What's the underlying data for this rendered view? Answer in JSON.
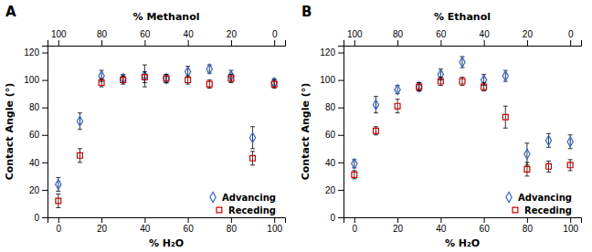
{
  "chart_data": [
    {
      "type": "scatter",
      "title": "A",
      "x_label": "% H₂O",
      "y_label": "Contact Angle (°)",
      "x2_label": "% Methanol",
      "x": [
        0,
        10,
        20,
        30,
        40,
        50,
        60,
        70,
        80,
        90,
        100
      ],
      "series": [
        {
          "name": "Advancing",
          "color": "#3366cc",
          "marker": "diamond",
          "values": [
            24,
            70,
            103,
            101,
            103,
            101,
            106,
            108,
            103,
            58,
            98
          ],
          "errors": [
            5,
            6,
            4,
            3,
            8,
            3,
            4,
            3,
            4,
            8,
            3
          ]
        },
        {
          "name": "Receding",
          "color": "#cc0000",
          "marker": "square",
          "values": [
            12,
            45,
            98,
            100,
            102,
            101,
            100,
            97,
            101,
            43,
            97
          ],
          "errors": [
            5,
            5,
            3,
            3,
            4,
            3,
            3,
            3,
            3,
            5,
            3
          ]
        }
      ],
      "xlim": [
        -5,
        105
      ],
      "xticks": [
        0,
        20,
        40,
        60,
        80,
        100
      ],
      "x2lim": [
        -5,
        105
      ],
      "x2ticks": [
        {
          "value": 0,
          "label": "100"
        },
        {
          "value": 20,
          "label": "80"
        },
        {
          "value": 40,
          "label": "60"
        },
        {
          "value": 60,
          "label": "40"
        },
        {
          "value": 80,
          "label": "20"
        },
        {
          "value": 100,
          "label": "0"
        }
      ],
      "ylim": [
        0,
        125
      ],
      "yticks": [
        0,
        20,
        40,
        60,
        80,
        100,
        120
      ],
      "legend": "lower right",
      "grid": false
    },
    {
      "type": "scatter",
      "title": "B",
      "x_label": "% H₂O",
      "y_label": "Contact Angle (°)",
      "x2_label": "% Ethanol",
      "x": [
        0,
        10,
        20,
        30,
        40,
        50,
        60,
        70,
        80,
        90,
        100
      ],
      "series": [
        {
          "name": "Advancing",
          "color": "#3366cc",
          "marker": "diamond",
          "values": [
            39,
            82,
            93,
            95,
            104,
            113,
            100,
            103,
            46,
            56,
            55
          ],
          "errors": [
            3,
            6,
            3,
            3,
            4,
            4,
            4,
            4,
            8,
            5,
            5
          ]
        },
        {
          "name": "Receding",
          "color": "#cc0000",
          "marker": "square",
          "values": [
            31,
            63,
            81,
            95,
            99,
            99,
            95,
            73,
            35,
            37,
            38
          ],
          "errors": [
            3,
            3,
            5,
            3,
            3,
            3,
            3,
            8,
            5,
            4,
            4
          ]
        }
      ],
      "xlim": [
        -5,
        105
      ],
      "xticks": [
        0,
        20,
        40,
        60,
        80,
        100
      ],
      "x2lim": [
        -5,
        105
      ],
      "x2ticks": [
        {
          "value": 0,
          "label": "100"
        },
        {
          "value": 20,
          "label": "80"
        },
        {
          "value": 40,
          "label": "60"
        },
        {
          "value": 60,
          "label": "40"
        },
        {
          "value": 80,
          "label": "20"
        },
        {
          "value": 100,
          "label": "0"
        }
      ],
      "ylim": [
        0,
        125
      ],
      "yticks": [
        0,
        20,
        40,
        60,
        80,
        100,
        120
      ],
      "legend": "lower right",
      "grid": false
    }
  ]
}
